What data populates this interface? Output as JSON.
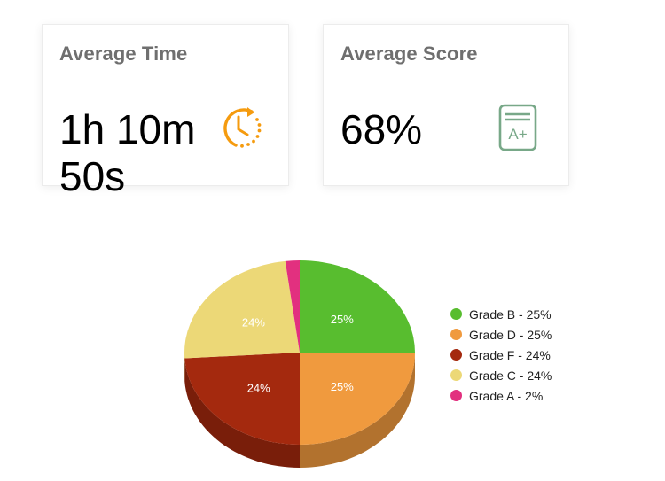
{
  "cards": {
    "time": {
      "title": "Average Time",
      "value": "1h 10m 50s",
      "icon": "clock-history-icon",
      "icon_color": "#f59b0f"
    },
    "score": {
      "title": "Average Score",
      "value": "68%",
      "icon": "grade-a-plus-icon",
      "icon_color": "#78a888"
    }
  },
  "chart_data": {
    "type": "pie",
    "style": "3d",
    "title": "",
    "categories": [
      "Grade B",
      "Grade D",
      "Grade F",
      "Grade C",
      "Grade A"
    ],
    "values": [
      25,
      25,
      24,
      24,
      2
    ],
    "colors": [
      "#58bd2f",
      "#f09a3e",
      "#a4290e",
      "#ecd877",
      "#e2307f"
    ],
    "slice_labels": [
      "25%",
      "25%",
      "24%",
      "24%",
      ""
    ],
    "legend": [
      "Grade B - 25%",
      "Grade D - 25%",
      "Grade F - 24%",
      "Grade C - 24%",
      "Grade A - 2%"
    ],
    "legend_position": "right"
  },
  "legend": {
    "items": [
      {
        "label": "Grade B - 25%",
        "color": "#58bd2f"
      },
      {
        "label": "Grade D - 25%",
        "color": "#f09a3e"
      },
      {
        "label": "Grade F - 24%",
        "color": "#a4290e"
      },
      {
        "label": "Grade C - 24%",
        "color": "#ecd877"
      },
      {
        "label": "Grade A - 2%",
        "color": "#e2307f"
      }
    ]
  }
}
